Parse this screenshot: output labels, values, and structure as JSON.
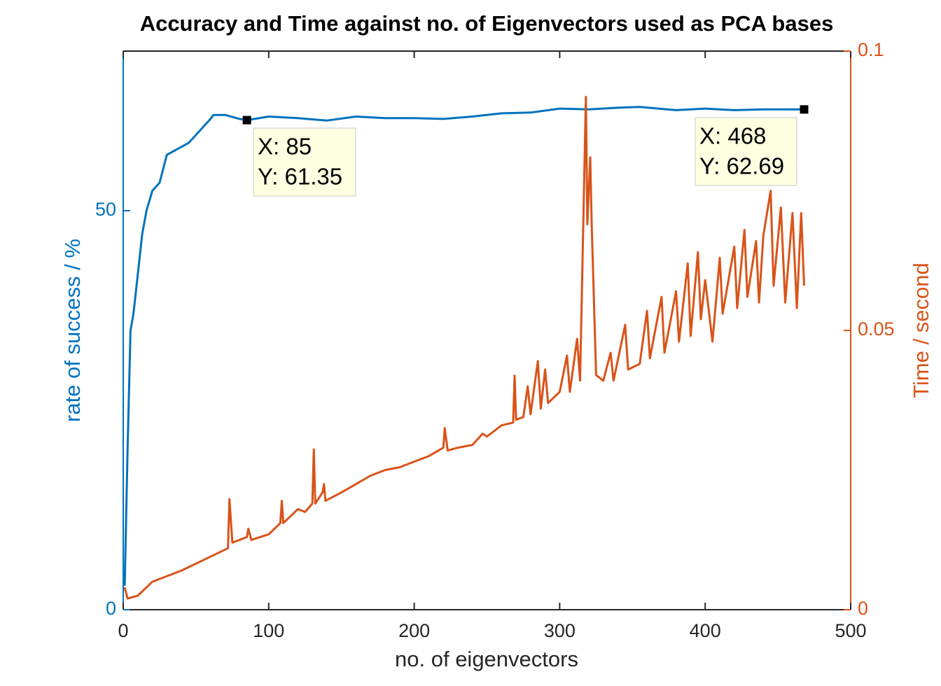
{
  "chart_data": {
    "type": "line",
    "title": "Accuracy and Time against no. of Eigenvectors used as PCA bases",
    "x_label": "no. of eigenvectors",
    "y_label": "rate of success / %",
    "y2_label": "Time / second",
    "xlim": [
      0,
      500
    ],
    "xticks": [
      0,
      100,
      200,
      300,
      400,
      500
    ],
    "ylim": [
      0,
      70
    ],
    "yticks": [
      0,
      50
    ],
    "y2lim": [
      0,
      0.1
    ],
    "y2ticks": [
      0,
      0.05,
      0.1
    ],
    "grid": false,
    "series": [
      {
        "name": "rate of success",
        "color": "#0072BD",
        "x": [
          1,
          3,
          5,
          7,
          10,
          13,
          16,
          20,
          25,
          30,
          35,
          40,
          45,
          50,
          55,
          60,
          62,
          70,
          80,
          85,
          100,
          120,
          140,
          160,
          180,
          200,
          220,
          240,
          260,
          280,
          300,
          320,
          340,
          355,
          380,
          400,
          420,
          440,
          468
        ],
        "values": [
          3,
          20,
          35,
          37,
          42,
          47,
          50,
          52.5,
          53.5,
          57,
          57.5,
          58,
          58.5,
          59.5,
          60.5,
          61.5,
          62,
          62,
          61.5,
          61.35,
          61.8,
          61.6,
          61.3,
          61.8,
          61.6,
          61.6,
          61.5,
          61.8,
          62.2,
          62.3,
          62.8,
          62.7,
          62.9,
          63,
          62.6,
          62.8,
          62.6,
          62.7,
          62.69
        ]
      },
      {
        "name": "time",
        "color": "#D95319",
        "axis": "y2",
        "x": [
          1,
          3,
          10,
          20,
          40,
          60,
          72,
          73,
          75,
          85,
          86,
          88,
          100,
          108,
          109,
          110,
          120,
          125,
          130,
          131,
          132,
          137,
          138,
          139,
          150,
          160,
          170,
          180,
          190,
          200,
          210,
          220,
          221,
          223,
          230,
          240,
          247,
          250,
          260,
          268,
          269,
          270,
          275,
          278,
          280,
          285,
          287,
          290,
          292,
          300,
          305,
          307,
          312,
          314,
          318,
          319,
          321,
          322,
          325,
          330,
          335,
          337,
          345,
          347,
          355,
          360,
          362,
          370,
          372,
          380,
          382,
          388,
          390,
          395,
          397,
          400,
          405,
          410,
          412,
          420,
          422,
          427,
          429,
          435,
          437,
          440,
          445,
          447,
          452,
          455,
          460,
          463,
          466,
          468
        ],
        "values": [
          0.004,
          0.002,
          0.0025,
          0.005,
          0.007,
          0.0095,
          0.011,
          0.0198,
          0.012,
          0.013,
          0.0145,
          0.0125,
          0.0135,
          0.0155,
          0.0195,
          0.0155,
          0.018,
          0.0175,
          0.019,
          0.0287,
          0.019,
          0.021,
          0.0225,
          0.0195,
          0.021,
          0.0225,
          0.024,
          0.025,
          0.0255,
          0.0265,
          0.0275,
          0.029,
          0.0325,
          0.0285,
          0.029,
          0.0295,
          0.0315,
          0.031,
          0.033,
          0.0335,
          0.0419,
          0.034,
          0.0345,
          0.04,
          0.035,
          0.0445,
          0.036,
          0.043,
          0.037,
          0.039,
          0.0455,
          0.039,
          0.0485,
          0.041,
          0.0918,
          0.069,
          0.081,
          0.069,
          0.042,
          0.041,
          0.046,
          0.041,
          0.051,
          0.043,
          0.044,
          0.0535,
          0.045,
          0.056,
          0.046,
          0.057,
          0.048,
          0.062,
          0.049,
          0.064,
          0.052,
          0.059,
          0.048,
          0.063,
          0.053,
          0.065,
          0.054,
          0.068,
          0.056,
          0.066,
          0.055,
          0.067,
          0.075,
          0.058,
          0.072,
          0.055,
          0.071,
          0.054,
          0.071,
          0.058
        ]
      }
    ],
    "annotations": [
      {
        "x": 85,
        "y": 61.35,
        "lines": [
          "X: 85",
          "Y: 61.35"
        ]
      },
      {
        "x": 468,
        "y": 62.69,
        "lines": [
          "X: 468",
          "Y: 62.69"
        ]
      }
    ]
  }
}
